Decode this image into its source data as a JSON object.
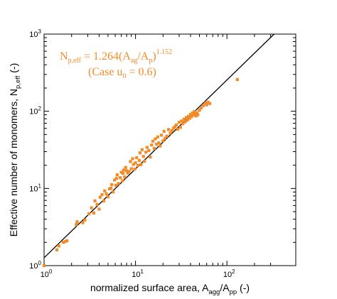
{
  "chart_data": {
    "type": "scatter",
    "title": "",
    "x_scale": "log",
    "y_scale": "log",
    "xlim": [
      1,
      300
    ],
    "ylim": [
      1,
      1000
    ],
    "grid": false,
    "xlabel": {
      "main": "normalized surface area, A",
      "sub1": "agg",
      "mid": "/A",
      "sub2": "pp",
      "tail": " (-)"
    },
    "ylabel": {
      "main": "Effective number of monomers, N",
      "sub": "p,eff",
      "tail": " (-)"
    },
    "x_ticks": [
      {
        "base": "10",
        "exp": "0",
        "value": 1
      },
      {
        "base": "10",
        "exp": "1",
        "value": 10
      },
      {
        "base": "10",
        "exp": "2",
        "value": 100
      }
    ],
    "y_ticks": [
      {
        "base": "10",
        "exp": "0",
        "value": 1
      },
      {
        "base": "10",
        "exp": "1",
        "value": 10
      },
      {
        "base": "10",
        "exp": "2",
        "value": 100
      },
      {
        "base": "10",
        "exp": "3",
        "value": 1000
      }
    ],
    "annotation": {
      "line1": {
        "p1": "N",
        "p1sub": "p,eff",
        "p2": " = 1.264(A",
        "p2sub": "ag",
        "p3": "/A",
        "p3sub": "p",
        "p4": ")",
        "p4sup": "1.152"
      },
      "line2": {
        "p1": "(Case u",
        "p1sub": "0",
        "p2": " = 0.6)"
      }
    },
    "fit": {
      "coefficient": 1.264,
      "exponent": 1.152
    },
    "colors": {
      "points": "#f28c28",
      "fit_line": "#000000",
      "annotation": "#f28c28"
    },
    "series": [
      {
        "marker": "square",
        "x": [
          1.0,
          1.38,
          1.45,
          1.62,
          1.7,
          1.78,
          2.25,
          2.3,
          2.65,
          2.8,
          3.1,
          3.3,
          3.5,
          3.6,
          3.8,
          4.0,
          4.1,
          4.3,
          4.5,
          4.6,
          4.8,
          5.0,
          5.2,
          5.4,
          5.5,
          5.7,
          5.9,
          6.1,
          6.2,
          6.3,
          6.5,
          6.8,
          7.0,
          7.2,
          7.3,
          7.4,
          7.6,
          7.8,
          8.0,
          8.2,
          8.5,
          8.8,
          9.0,
          9.3,
          9.5,
          9.8,
          10.0,
          10.3,
          10.6,
          11.0,
          11.2,
          11.5,
          11.8,
          12.2,
          12.5,
          13.0,
          13.4,
          14.0,
          14.5,
          15.0,
          15.5,
          16.0,
          16.5,
          17.0,
          17.5,
          18.0,
          18.6,
          19.2,
          20.0,
          20.5,
          21.0,
          22.0,
          23.0,
          24.0,
          25.0,
          26.0,
          27.0,
          28.0,
          29.0,
          30.0,
          31.0,
          32.0,
          33.0,
          34.0,
          35.0,
          36.0,
          37.0,
          38.0,
          39.0,
          40.0,
          41.0,
          42.0,
          43.0,
          44.0,
          45.0,
          46.0,
          47.0,
          48.0,
          50.0,
          52.0,
          55.0,
          58.0,
          60.0,
          62.0,
          65.0,
          130.0
        ],
        "y": [
          1.0,
          1.6,
          1.8,
          2.0,
          2.05,
          2.1,
          3.4,
          3.7,
          3.6,
          3.9,
          4.7,
          5.6,
          4.8,
          6.9,
          6.2,
          5.4,
          7.7,
          8.3,
          6.9,
          9.3,
          8.5,
          7.8,
          9.9,
          10.1,
          11.2,
          9.0,
          12.9,
          11.0,
          13.5,
          15.0,
          11.6,
          13.8,
          16.2,
          12.6,
          15.7,
          17.3,
          14.1,
          18.7,
          17.0,
          15.8,
          16.6,
          22.3,
          18.0,
          24.3,
          20.5,
          17.8,
          21.5,
          25.0,
          19.8,
          23.1,
          28.9,
          20.4,
          31.8,
          26.0,
          22.5,
          29.5,
          34.0,
          31.0,
          25.5,
          36.5,
          41.0,
          33.0,
          44.0,
          37.5,
          46.5,
          39.0,
          35.5,
          49.0,
          41.5,
          55.0,
          44.5,
          47.5,
          58.0,
          52.0,
          56.0,
          60.5,
          63.0,
          66.5,
          58.5,
          72.0,
          62.0,
          75.0,
          69.0,
          79.0,
          73.0,
          83.0,
          77.0,
          86.0,
          81.0,
          91.0,
          85.0,
          95.0,
          89.0,
          99.0,
          93.0,
          87.0,
          96.0,
          90.0,
          103.0,
          110.0,
          118.0,
          127.0,
          121.0,
          131.0,
          126.0,
          258.0
        ]
      }
    ]
  }
}
